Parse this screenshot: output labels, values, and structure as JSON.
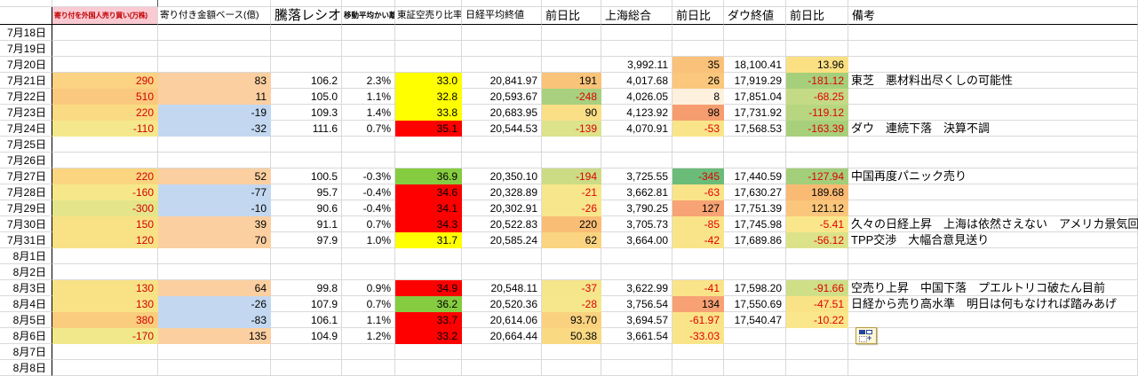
{
  "sheet": {
    "headers": [
      {
        "key": "date",
        "label": ""
      },
      {
        "key": "foreign",
        "label": "寄り付を外国人売り買い(万株)"
      },
      {
        "key": "amount",
        "label": "寄り付き金額ベース(億)"
      },
      {
        "key": "ratio",
        "label": "騰落レシオ"
      },
      {
        "key": "ma_div",
        "label": "移動平均かい離"
      },
      {
        "key": "short_ratio",
        "label": "東証空売り比率"
      },
      {
        "key": "nikkei",
        "label": "日経平均終値"
      },
      {
        "key": "nikkei_chg",
        "label": "前日比"
      },
      {
        "key": "shanghai",
        "label": "上海総合"
      },
      {
        "key": "shanghai_chg",
        "label": "前日比"
      },
      {
        "key": "dow",
        "label": "ダウ終値"
      },
      {
        "key": "dow_chg",
        "label": "前日比"
      },
      {
        "key": "remark",
        "label": "備考"
      }
    ],
    "colors": {
      "header_pink_bg": "#FACAD3",
      "header_pink_text": "#C00000",
      "short_yellow": "#FFFF00",
      "short_red": "#FF0000",
      "short_green": "#85CC40",
      "pos_blue": "#C3D8F0",
      "pos_peach": "#FBCFA0",
      "neg_text_red": "#E00000"
    },
    "rows": [
      {
        "date": "7月18日",
        "cells": []
      },
      {
        "date": "7月19日",
        "cells": []
      },
      {
        "date": "7月20日",
        "cells": [
          {
            "v": ""
          },
          {
            "v": ""
          },
          {
            "v": ""
          },
          {
            "v": ""
          },
          {
            "v": ""
          },
          {
            "v": ""
          },
          {
            "v": ""
          },
          {
            "v": "3,992.11"
          },
          {
            "v": "35",
            "bg": "#FAC17A"
          },
          {
            "v": "18,100.41"
          },
          {
            "v": "13.96",
            "bg": "#FAE083"
          },
          {
            "v": ""
          }
        ]
      },
      {
        "date": "7月21日",
        "cells": [
          {
            "v": "290",
            "bg": "#FBD383",
            "fg": "b"
          },
          {
            "v": "83",
            "bg": "#FBCFA0"
          },
          {
            "v": "106.2"
          },
          {
            "v": "2.3%"
          },
          {
            "v": "33.0",
            "bg": "#FFFF00"
          },
          {
            "v": "20,841.97"
          },
          {
            "v": "191",
            "bg": "#FAC37A"
          },
          {
            "v": "4,017.68"
          },
          {
            "v": "26",
            "bg": "#FAC77C"
          },
          {
            "v": "17,919.29"
          },
          {
            "v": "-181.12",
            "bg": "#A6CF7B",
            "fg": "r"
          },
          {
            "v": "東芝　悪材料出尽くしの可能性"
          }
        ]
      },
      {
        "date": "7月22日",
        "cells": [
          {
            "v": "510",
            "bg": "#FAC97E",
            "fg": "b"
          },
          {
            "v": "11",
            "bg": "#FBCFA0"
          },
          {
            "v": "105.0"
          },
          {
            "v": "1.1%"
          },
          {
            "v": "32.8",
            "bg": "#FFFF00"
          },
          {
            "v": "20,593.67"
          },
          {
            "v": "-248",
            "bg": "#A8D07E",
            "fg": "r"
          },
          {
            "v": "4,026.05"
          },
          {
            "v": "8",
            "bg": "#FDF0DC"
          },
          {
            "v": "17,851.04"
          },
          {
            "v": "-68.25",
            "bg": "#C4DA85",
            "fg": "r"
          },
          {
            "v": ""
          }
        ]
      },
      {
        "date": "7月23日",
        "cells": [
          {
            "v": "220",
            "bg": "#FBDA84",
            "fg": "b"
          },
          {
            "v": "-19",
            "bg": "#C3D8F0"
          },
          {
            "v": "109.3"
          },
          {
            "v": "1.4%"
          },
          {
            "v": "33.8",
            "bg": "#FFFF00"
          },
          {
            "v": "20,683.95"
          },
          {
            "v": "90",
            "bg": "#FBDF87"
          },
          {
            "v": "4,123.92"
          },
          {
            "v": "98",
            "bg": "#F69D70"
          },
          {
            "v": "17,731.92"
          },
          {
            "v": "-119.12",
            "bg": "#B8D680",
            "fg": "r"
          },
          {
            "v": ""
          }
        ]
      },
      {
        "date": "7月24日",
        "cells": [
          {
            "v": "-110",
            "bg": "#F5E88C",
            "fg": "b"
          },
          {
            "v": "-32",
            "bg": "#C3D8F0"
          },
          {
            "v": "111.6"
          },
          {
            "v": "0.7%"
          },
          {
            "v": "35.1",
            "bg": "#FF0000"
          },
          {
            "v": "20,544.53"
          },
          {
            "v": "-139",
            "bg": "#DCE38B",
            "fg": "r"
          },
          {
            "v": "4,070.91"
          },
          {
            "v": "-53",
            "bg": "#FAE489",
            "fg": "r"
          },
          {
            "v": "17,568.53"
          },
          {
            "v": "-163.39",
            "bg": "#A8D07C",
            "fg": "r"
          },
          {
            "v": "ダウ　連続下落　決算不調"
          }
        ]
      },
      {
        "date": "7月25日",
        "cells": []
      },
      {
        "date": "7月26日",
        "cells": []
      },
      {
        "date": "7月27日",
        "cells": [
          {
            "v": "220",
            "bg": "#FBD580",
            "fg": "b"
          },
          {
            "v": "52",
            "bg": "#FBCFA0"
          },
          {
            "v": "100.5"
          },
          {
            "v": "-0.3%"
          },
          {
            "v": "36.9",
            "bg": "#85CC40"
          },
          {
            "v": "20,350.10"
          },
          {
            "v": "-194",
            "bg": "#CBDC85",
            "fg": "r"
          },
          {
            "v": "3,725.55"
          },
          {
            "v": "-345",
            "bg": "#6BBC79",
            "fg": "r"
          },
          {
            "v": "17,440.59"
          },
          {
            "v": "-127.94",
            "bg": "#A3CE7A",
            "fg": "r"
          },
          {
            "v": "中国再度パニック売り"
          }
        ]
      },
      {
        "date": "7月28日",
        "cells": [
          {
            "v": "-160",
            "bg": "#F6E88A",
            "fg": "b"
          },
          {
            "v": "-77",
            "bg": "#C3D8F0"
          },
          {
            "v": "95.7"
          },
          {
            "v": "-0.4%"
          },
          {
            "v": "34.6",
            "bg": "#FF0000"
          },
          {
            "v": "20,328.89"
          },
          {
            "v": "-21",
            "bg": "#F8E68C",
            "fg": "r"
          },
          {
            "v": "3,662.81"
          },
          {
            "v": "-63",
            "bg": "#FAE489",
            "fg": "r"
          },
          {
            "v": "17,630.27"
          },
          {
            "v": "189.68",
            "bg": "#F9BA73"
          },
          {
            "v": ""
          }
        ]
      },
      {
        "date": "7月29日",
        "cells": [
          {
            "v": "-300",
            "bg": "#E4E58A",
            "fg": "b"
          },
          {
            "v": "-10",
            "bg": "#C3D8F0"
          },
          {
            "v": "90.6"
          },
          {
            "v": "-0.4%"
          },
          {
            "v": "34.1",
            "bg": "#FF0000"
          },
          {
            "v": "20,302.91"
          },
          {
            "v": "-26",
            "bg": "#F8E68C",
            "fg": "r"
          },
          {
            "v": "3,790.25"
          },
          {
            "v": "127",
            "bg": "#F7A375"
          },
          {
            "v": "17,751.39"
          },
          {
            "v": "121.12",
            "bg": "#FAC67B"
          },
          {
            "v": ""
          }
        ]
      },
      {
        "date": "7月30日",
        "cells": [
          {
            "v": "150",
            "bg": "#F9E186",
            "fg": "b"
          },
          {
            "v": "39",
            "bg": "#FBCFA0"
          },
          {
            "v": "91.1"
          },
          {
            "v": "0.7%"
          },
          {
            "v": "34.3",
            "bg": "#FF0000"
          },
          {
            "v": "20,522.83"
          },
          {
            "v": "220",
            "bg": "#FABD75"
          },
          {
            "v": "3,705.73"
          },
          {
            "v": "-85",
            "bg": "#FAE489",
            "fg": "r"
          },
          {
            "v": "17,745.98"
          },
          {
            "v": "-5.41",
            "bg": "#FAE78C",
            "fg": "r"
          },
          {
            "v": "久々の日経上昇　上海は依然さえない　アメリカ景気回復"
          }
        ]
      },
      {
        "date": "7月31日",
        "cells": [
          {
            "v": "120",
            "bg": "#F9E186",
            "fg": "b"
          },
          {
            "v": "70",
            "bg": "#FBCFA0"
          },
          {
            "v": "97.9"
          },
          {
            "v": "1.0%"
          },
          {
            "v": "31.7",
            "bg": "#FFFF00"
          },
          {
            "v": "20,585.24"
          },
          {
            "v": "62",
            "bg": "#FAD480"
          },
          {
            "v": "3,664.00"
          },
          {
            "v": "-42",
            "bg": "#FAE489",
            "fg": "r"
          },
          {
            "v": "17,689.86"
          },
          {
            "v": "-56.12",
            "bg": "#DCE28A",
            "fg": "r"
          },
          {
            "v": "TPP交渉　大幅合意見送り"
          }
        ]
      },
      {
        "date": "8月1日",
        "cells": []
      },
      {
        "date": "8月2日",
        "cells": []
      },
      {
        "date": "8月3日",
        "cells": [
          {
            "v": "130",
            "bg": "#F9E286",
            "fg": "b"
          },
          {
            "v": "64",
            "bg": "#FBCFA0"
          },
          {
            "v": "99.8"
          },
          {
            "v": "0.9%"
          },
          {
            "v": "34.9",
            "bg": "#FF0000"
          },
          {
            "v": "20,548.11"
          },
          {
            "v": "-37",
            "bg": "#F5E58B",
            "fg": "r"
          },
          {
            "v": "3,622.99"
          },
          {
            "v": "-41",
            "bg": "#FAE489",
            "fg": "r"
          },
          {
            "v": "17,598.20"
          },
          {
            "v": "-91.66",
            "bg": "#CFDF87",
            "fg": "r"
          },
          {
            "v": "空売り上昇　中国下落　プエルトリコ破たん目前"
          }
        ]
      },
      {
        "date": "8月4日",
        "cells": [
          {
            "v": "130",
            "bg": "#F9E286",
            "fg": "b"
          },
          {
            "v": "-26",
            "bg": "#C3D8F0"
          },
          {
            "v": "107.9"
          },
          {
            "v": "0.7%"
          },
          {
            "v": "36.2",
            "bg": "#85CC40"
          },
          {
            "v": "20,520.36"
          },
          {
            "v": "-28",
            "bg": "#F7E78C",
            "fg": "r"
          },
          {
            "v": "3,756.54"
          },
          {
            "v": "134",
            "bg": "#F7A175"
          },
          {
            "v": "17,550.69"
          },
          {
            "v": "-47.51",
            "bg": "#FAE287",
            "fg": "r"
          },
          {
            "v": "日経から売り高水準　明日は何もなければ踏みあげ"
          }
        ]
      },
      {
        "date": "8月5日",
        "cells": [
          {
            "v": "380",
            "bg": "#FACD7E",
            "fg": "b"
          },
          {
            "v": "-83",
            "bg": "#C3D8F0"
          },
          {
            "v": "106.1"
          },
          {
            "v": "1.1%"
          },
          {
            "v": "33.7",
            "bg": "#FF0000"
          },
          {
            "v": "20,614.06"
          },
          {
            "v": "93.70",
            "bg": "#FAD27F"
          },
          {
            "v": "3,694.57"
          },
          {
            "v": "-61.97",
            "bg": "#FAE489",
            "fg": "r"
          },
          {
            "v": "17,540.47"
          },
          {
            "v": "-10.22",
            "bg": "#FAE78C",
            "fg": "r"
          },
          {
            "v": ""
          }
        ]
      },
      {
        "date": "8月6日",
        "cells": [
          {
            "v": "-170",
            "bg": "#F1E88C",
            "fg": "b"
          },
          {
            "v": "135",
            "bg": "#FBCFA0"
          },
          {
            "v": "104.9"
          },
          {
            "v": "1.2%"
          },
          {
            "v": "33.2",
            "bg": "#FF0000"
          },
          {
            "v": "20,664.44"
          },
          {
            "v": "50.38",
            "bg": "#FAD983"
          },
          {
            "v": "3,661.54"
          },
          {
            "v": "-33.03",
            "bg": "#FAE489",
            "fg": "r"
          },
          {
            "v": ""
          },
          {
            "v": ""
          },
          {
            "v": "",
            "icon": "paste_options"
          }
        ]
      },
      {
        "date": "8月7日",
        "cells": []
      },
      {
        "date": "8月8日",
        "cells": []
      }
    ],
    "icons": {
      "paste_options": "paste-options-icon"
    }
  }
}
